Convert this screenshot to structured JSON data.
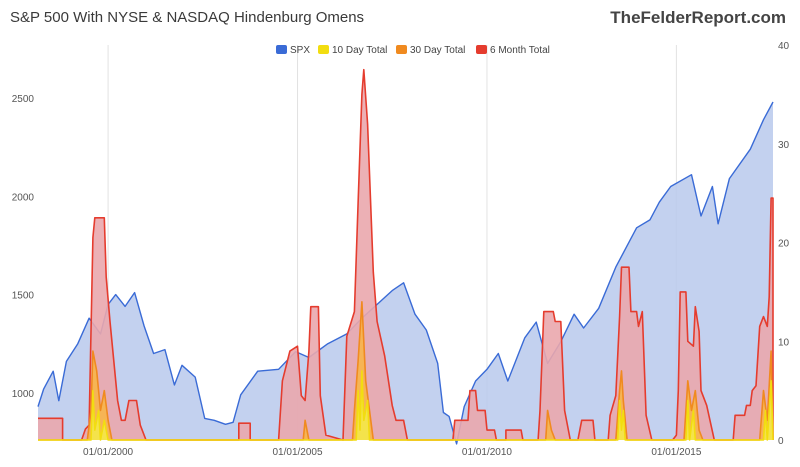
{
  "header": {
    "title": "S&P 500 With NYSE & NASDAQ Hindenburg Omens",
    "brand": "TheFelderReport.com"
  },
  "chart_data": {
    "type": "area",
    "x_ticks": [
      "01/01/2000",
      "01/01/2005",
      "01/01/2010",
      "01/01/2015"
    ],
    "x_range": [
      1998.15,
      2017.55
    ],
    "y_left": {
      "ticks": [
        1000,
        1500,
        2000,
        2500
      ],
      "range": [
        760,
        2770
      ]
    },
    "y_right": {
      "ticks": [
        0,
        10,
        20,
        30,
        40
      ],
      "range": [
        0,
        40
      ]
    },
    "legend": {
      "placement": "top"
    },
    "grid": "vertical",
    "series": [
      {
        "name": "SPX",
        "axis": "left",
        "color": "#3a6bd6",
        "fill": "#b8c9ec",
        "points": [
          [
            1998.15,
            930
          ],
          [
            1998.3,
            1020
          ],
          [
            1998.55,
            1110
          ],
          [
            1998.7,
            960
          ],
          [
            1998.9,
            1160
          ],
          [
            1999.2,
            1250
          ],
          [
            1999.5,
            1380
          ],
          [
            1999.8,
            1300
          ],
          [
            2000.0,
            1450
          ],
          [
            2000.2,
            1500
          ],
          [
            2000.45,
            1440
          ],
          [
            2000.7,
            1510
          ],
          [
            2000.95,
            1340
          ],
          [
            2001.2,
            1200
          ],
          [
            2001.5,
            1220
          ],
          [
            2001.75,
            1040
          ],
          [
            2001.95,
            1140
          ],
          [
            2002.3,
            1080
          ],
          [
            2002.55,
            870
          ],
          [
            2002.8,
            860
          ],
          [
            2003.1,
            840
          ],
          [
            2003.3,
            850
          ],
          [
            2003.5,
            990
          ],
          [
            2003.95,
            1110
          ],
          [
            2004.5,
            1120
          ],
          [
            2004.95,
            1210
          ],
          [
            2005.3,
            1180
          ],
          [
            2005.8,
            1250
          ],
          [
            2006.3,
            1300
          ],
          [
            2006.7,
            1380
          ],
          [
            2007.1,
            1450
          ],
          [
            2007.5,
            1520
          ],
          [
            2007.8,
            1560
          ],
          [
            2008.1,
            1400
          ],
          [
            2008.4,
            1320
          ],
          [
            2008.7,
            1150
          ],
          [
            2008.85,
            900
          ],
          [
            2009.0,
            880
          ],
          [
            2009.2,
            740
          ],
          [
            2009.4,
            930
          ],
          [
            2009.7,
            1060
          ],
          [
            2010.0,
            1120
          ],
          [
            2010.3,
            1200
          ],
          [
            2010.55,
            1060
          ],
          [
            2011.0,
            1280
          ],
          [
            2011.3,
            1360
          ],
          [
            2011.6,
            1150
          ],
          [
            2011.95,
            1260
          ],
          [
            2012.3,
            1400
          ],
          [
            2012.55,
            1330
          ],
          [
            2012.95,
            1430
          ],
          [
            2013.4,
            1640
          ],
          [
            2013.95,
            1840
          ],
          [
            2014.3,
            1880
          ],
          [
            2014.55,
            1970
          ],
          [
            2014.85,
            2050
          ],
          [
            2015.4,
            2110
          ],
          [
            2015.65,
            1900
          ],
          [
            2015.95,
            2050
          ],
          [
            2016.1,
            1860
          ],
          [
            2016.4,
            2090
          ],
          [
            2016.95,
            2240
          ],
          [
            2017.3,
            2390
          ],
          [
            2017.55,
            2480
          ]
        ]
      },
      {
        "name": "6 Month Total",
        "axis": "right",
        "color": "#e53c2e",
        "fill": "#eaa7ad",
        "points": [
          [
            1998.15,
            2.2
          ],
          [
            1998.8,
            2.2
          ],
          [
            1998.8,
            0
          ],
          [
            1999.3,
            0
          ],
          [
            1999.4,
            1.1
          ],
          [
            1999.5,
            1.5
          ],
          [
            1999.6,
            20.5
          ],
          [
            1999.65,
            22.5
          ],
          [
            1999.9,
            22.5
          ],
          [
            1999.95,
            16.5
          ],
          [
            2000.05,
            12
          ],
          [
            2000.15,
            8
          ],
          [
            2000.25,
            4
          ],
          [
            2000.35,
            2
          ],
          [
            2000.45,
            2
          ],
          [
            2000.55,
            4
          ],
          [
            2000.75,
            4
          ],
          [
            2000.85,
            1.5
          ],
          [
            2001.0,
            0
          ],
          [
            2003.45,
            0
          ],
          [
            2003.45,
            1.7
          ],
          [
            2003.75,
            1.7
          ],
          [
            2003.75,
            0
          ],
          [
            2004.5,
            0
          ],
          [
            2004.6,
            6
          ],
          [
            2004.8,
            9
          ],
          [
            2005.0,
            9.5
          ],
          [
            2005.1,
            4.5
          ],
          [
            2005.2,
            4
          ],
          [
            2005.3,
            9
          ],
          [
            2005.35,
            13.5
          ],
          [
            2005.55,
            13.5
          ],
          [
            2005.6,
            4.5
          ],
          [
            2005.75,
            0.5
          ],
          [
            2006.2,
            0
          ],
          [
            2006.3,
            10.5
          ],
          [
            2006.5,
            13
          ],
          [
            2006.6,
            24
          ],
          [
            2006.7,
            35
          ],
          [
            2006.75,
            37.5
          ],
          [
            2006.85,
            32
          ],
          [
            2007.0,
            17
          ],
          [
            2007.1,
            12
          ],
          [
            2007.3,
            8.5
          ],
          [
            2007.5,
            3.5
          ],
          [
            2007.6,
            2
          ],
          [
            2007.8,
            2
          ],
          [
            2007.9,
            0
          ],
          [
            2009.1,
            0
          ],
          [
            2009.15,
            2
          ],
          [
            2009.5,
            2
          ],
          [
            2009.55,
            5
          ],
          [
            2009.7,
            5
          ],
          [
            2009.75,
            3
          ],
          [
            2009.95,
            3
          ],
          [
            2010.0,
            1
          ],
          [
            2010.2,
            1
          ],
          [
            2010.25,
            0
          ],
          [
            2010.5,
            0
          ],
          [
            2010.5,
            1
          ],
          [
            2010.9,
            1
          ],
          [
            2010.95,
            0
          ],
          [
            2011.35,
            0
          ],
          [
            2011.4,
            3
          ],
          [
            2011.5,
            13
          ],
          [
            2011.75,
            13
          ],
          [
            2011.8,
            12
          ],
          [
            2011.95,
            12
          ],
          [
            2012.05,
            3
          ],
          [
            2012.2,
            0
          ],
          [
            2012.4,
            0
          ],
          [
            2012.5,
            2
          ],
          [
            2012.8,
            2
          ],
          [
            2012.85,
            0
          ],
          [
            2013.2,
            0
          ],
          [
            2013.25,
            2.5
          ],
          [
            2013.4,
            4.5
          ],
          [
            2013.5,
            12.5
          ],
          [
            2013.55,
            17.5
          ],
          [
            2013.75,
            17.5
          ],
          [
            2013.8,
            13
          ],
          [
            2013.95,
            13
          ],
          [
            2014.0,
            11.5
          ],
          [
            2014.1,
            13
          ],
          [
            2014.2,
            2.5
          ],
          [
            2014.35,
            0
          ],
          [
            2014.9,
            0
          ],
          [
            2015.0,
            0.5
          ],
          [
            2015.05,
            5
          ],
          [
            2015.1,
            15
          ],
          [
            2015.25,
            15
          ],
          [
            2015.3,
            10
          ],
          [
            2015.45,
            9.5
          ],
          [
            2015.5,
            13.5
          ],
          [
            2015.6,
            11
          ],
          [
            2015.65,
            5
          ],
          [
            2015.8,
            3.5
          ],
          [
            2016.0,
            0
          ],
          [
            2016.5,
            0
          ],
          [
            2016.55,
            2.5
          ],
          [
            2016.8,
            2.5
          ],
          [
            2016.85,
            3.5
          ],
          [
            2016.95,
            3.5
          ],
          [
            2017.0,
            5
          ],
          [
            2017.1,
            5.5
          ],
          [
            2017.2,
            11.5
          ],
          [
            2017.3,
            12.5
          ],
          [
            2017.4,
            11.5
          ],
          [
            2017.45,
            14.5
          ],
          [
            2017.5,
            24.5
          ],
          [
            2017.55,
            24.5
          ],
          [
            2017.55,
            0
          ]
        ]
      },
      {
        "name": "30 Day Total",
        "axis": "right",
        "color": "#f08a1f",
        "fill": "#f7b54a",
        "points": [
          [
            1998.15,
            0
          ],
          [
            1999.45,
            0
          ],
          [
            1999.55,
            3
          ],
          [
            1999.6,
            9
          ],
          [
            1999.7,
            7
          ],
          [
            1999.8,
            3
          ],
          [
            1999.9,
            5
          ],
          [
            2000.0,
            2
          ],
          [
            2000.1,
            0
          ],
          [
            2005.15,
            0
          ],
          [
            2005.2,
            2
          ],
          [
            2005.3,
            0
          ],
          [
            2006.45,
            0
          ],
          [
            2006.5,
            3
          ],
          [
            2006.6,
            8
          ],
          [
            2006.7,
            14
          ],
          [
            2006.8,
            6
          ],
          [
            2006.9,
            3
          ],
          [
            2007.0,
            0
          ],
          [
            2011.55,
            0
          ],
          [
            2011.6,
            3
          ],
          [
            2011.7,
            1
          ],
          [
            2011.8,
            0
          ],
          [
            2013.4,
            0
          ],
          [
            2013.5,
            5
          ],
          [
            2013.55,
            7
          ],
          [
            2013.6,
            4
          ],
          [
            2013.7,
            0
          ],
          [
            2015.2,
            0
          ],
          [
            2015.3,
            6
          ],
          [
            2015.4,
            3
          ],
          [
            2015.5,
            5
          ],
          [
            2015.6,
            1
          ],
          [
            2015.7,
            0
          ],
          [
            2017.2,
            0
          ],
          [
            2017.3,
            5
          ],
          [
            2017.4,
            2
          ],
          [
            2017.5,
            9
          ],
          [
            2017.55,
            0
          ]
        ]
      },
      {
        "name": "10 Day Total",
        "axis": "right",
        "color": "#f2dd10",
        "fill": "#f4e84a",
        "points": [
          [
            1998.15,
            0
          ],
          [
            1999.55,
            0
          ],
          [
            1999.6,
            5
          ],
          [
            1999.65,
            1
          ],
          [
            1999.75,
            3
          ],
          [
            1999.8,
            0
          ],
          [
            1999.9,
            2
          ],
          [
            2000.0,
            0
          ],
          [
            2006.55,
            0
          ],
          [
            2006.6,
            5
          ],
          [
            2006.65,
            1
          ],
          [
            2006.7,
            7
          ],
          [
            2006.75,
            2
          ],
          [
            2006.85,
            4
          ],
          [
            2006.9,
            0
          ],
          [
            2013.45,
            0
          ],
          [
            2013.5,
            4
          ],
          [
            2013.55,
            1
          ],
          [
            2013.6,
            3
          ],
          [
            2013.65,
            0
          ],
          [
            2015.25,
            0
          ],
          [
            2015.3,
            4
          ],
          [
            2015.35,
            0
          ],
          [
            2015.45,
            3
          ],
          [
            2015.5,
            0
          ],
          [
            2017.3,
            0
          ],
          [
            2017.35,
            3
          ],
          [
            2017.4,
            0
          ],
          [
            2017.5,
            6
          ],
          [
            2017.55,
            0
          ]
        ]
      }
    ]
  }
}
